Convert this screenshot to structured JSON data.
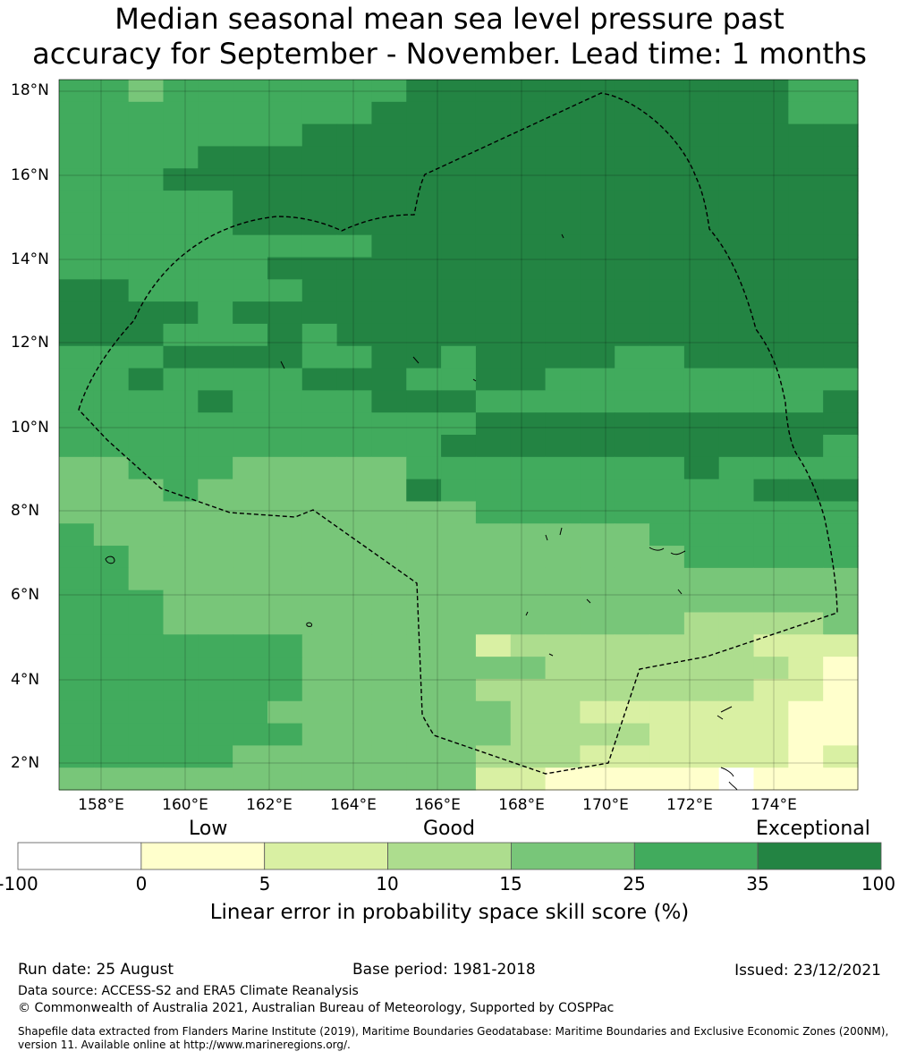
{
  "title": {
    "line1": "Median seasonal mean sea level pressure past",
    "line2": "accuracy for September - November. Lead time: 1 months"
  },
  "map": {
    "lat_labels": [
      "18°N",
      "16°N",
      "14°N",
      "12°N",
      "10°N",
      "8°N",
      "6°N",
      "4°N",
      "2°N"
    ],
    "lon_labels": [
      "158°E",
      "160°E",
      "162°E",
      "164°E",
      "166°E",
      "168°E",
      "170°E",
      "172°E",
      "174°E"
    ],
    "palette": [
      "#ffffff",
      "#ffffcc",
      "#d9f0a3",
      "#addd8e",
      "#78c679",
      "#41ab5d",
      "#238443"
    ]
  },
  "colorbar": {
    "categories": [
      "Low",
      "Good",
      "Exceptional"
    ],
    "ticks": [
      "-100",
      "0",
      "5",
      "10",
      "15",
      "25",
      "35",
      "100"
    ],
    "colors": [
      "#ffffff",
      "#ffffcc",
      "#d9f0a3",
      "#addd8e",
      "#78c679",
      "#41ab5d",
      "#238443"
    ],
    "title": "Linear error in probability space skill score (%)"
  },
  "footer": {
    "run_date": "Run date: 25 August",
    "base_period": "Base period: 1981-2018",
    "issued": "Issued: 23/12/2021",
    "data_source": "Data source: ACCESS-S2 and ERA5 Climate Reanalysis",
    "copyright": "© Commonwealth of Australia 2021, Australian Bureau of Meteorology, Supported by COSPPac",
    "shapefile": "Shapefile data extracted from Flanders Marine Institute (2019), Maritime Boundaries Geodatabase: Maritime Boundaries and Exclusive Economic Zones (200NM), version 11. Available online at http://www.marineregions.org/."
  }
}
